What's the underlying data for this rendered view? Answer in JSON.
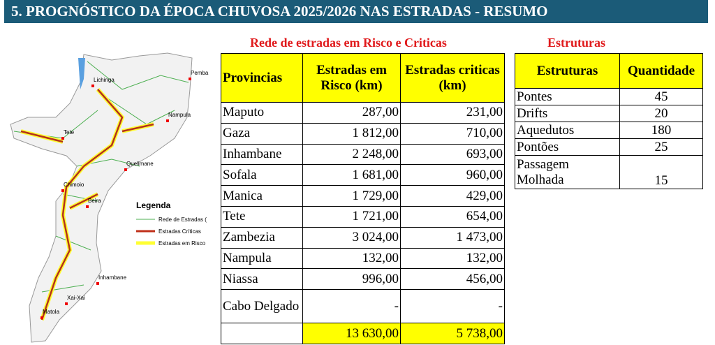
{
  "header": {
    "title": "5. PROGNÓSTICO DA ÉPOCA CHUVOSA 2025/2026 NAS ESTRADAS - RESUMO"
  },
  "map": {
    "cities": [
      "Lichinga",
      "Pemba",
      "Nampula",
      "Tete",
      "Quelimane",
      "Chimoio",
      "Beira",
      "Inhambane",
      "Xai-Xai",
      "Matola"
    ],
    "legend": {
      "title": "Legenda",
      "items": [
        "Rede de Estradas (",
        "Estradas Críticas",
        "Estradas em Risco"
      ]
    }
  },
  "roads_table": {
    "caption": "Rede de estradas em Risco e Criticas",
    "columns": [
      "Provincias",
      "Estradas em Risco (km)",
      "Estradas criticas  (km)"
    ],
    "rows": [
      [
        "Maputo",
        "287,00",
        "231,00"
      ],
      [
        "Gaza",
        "1 812,00",
        "710,00"
      ],
      [
        "Inhambane",
        "2 248,00",
        "693,00"
      ],
      [
        "Sofala",
        "1 681,00",
        "960,00"
      ],
      [
        "Manica",
        "1 729,00",
        "429,00"
      ],
      [
        "Tete",
        "1 721,00",
        "654,00"
      ],
      [
        "Zambezia",
        "3 024,00",
        "1 473,00"
      ],
      [
        "Nampula",
        "132,00",
        "132,00"
      ],
      [
        "Niassa",
        "996,00",
        "456,00"
      ],
      [
        "Cabo Delgado",
        "-",
        "-"
      ]
    ],
    "total": [
      "13 630,00",
      "5 738,00"
    ]
  },
  "structures_table": {
    "caption": "Estruturas",
    "columns": [
      "Estruturas",
      "Quantidade"
    ],
    "rows": [
      [
        "Pontes",
        "45"
      ],
      [
        "Drifts",
        "20"
      ],
      [
        "Aquedutos",
        "180"
      ],
      [
        "Pontões",
        "25"
      ],
      [
        "Passagem Molhada",
        "15"
      ]
    ]
  }
}
